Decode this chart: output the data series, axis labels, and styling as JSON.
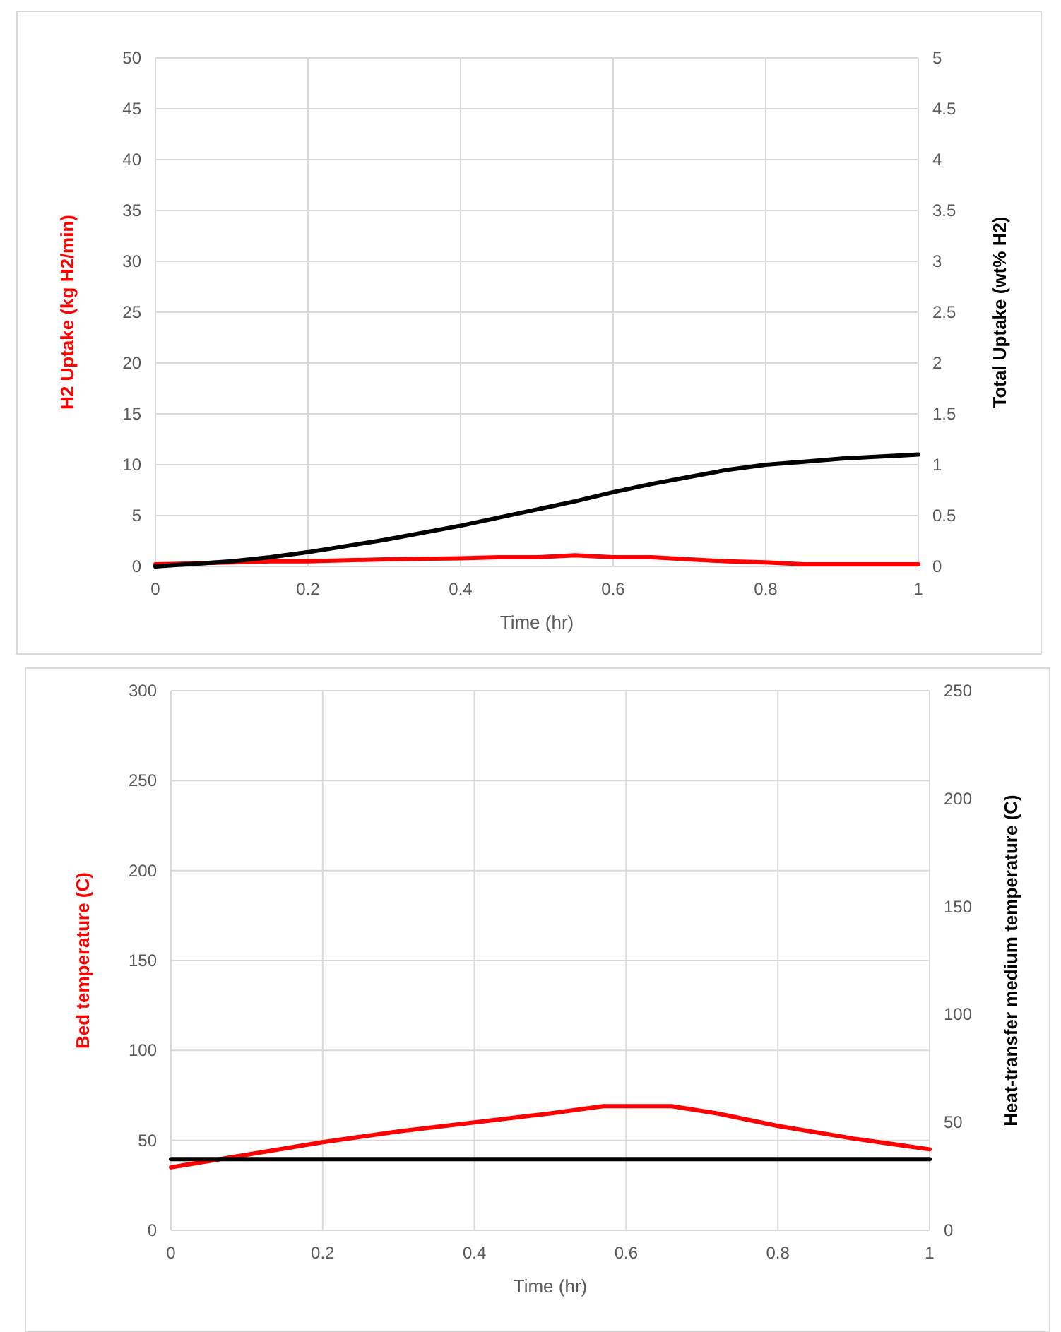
{
  "chart_data": [
    {
      "type": "line",
      "xlabel": "Time (hr)",
      "ylabel": "H2 Uptake (kg H2/min)",
      "y2label": "Total Uptake (wt% H2)",
      "x": [
        0,
        0.1,
        0.15,
        0.2,
        0.3,
        0.4,
        0.45,
        0.5,
        0.55,
        0.6,
        0.65,
        0.7,
        0.75,
        0.8,
        0.85,
        0.9,
        1
      ],
      "xlim": [
        0,
        1
      ],
      "xticks": [
        0,
        0.2,
        0.4,
        0.6,
        0.8,
        1
      ],
      "ylim": [
        0,
        50
      ],
      "yticks": [
        0,
        5,
        10,
        15,
        20,
        25,
        30,
        35,
        40,
        45,
        50
      ],
      "y2lim": [
        0,
        5
      ],
      "y2ticks": [
        0,
        0.5,
        1,
        1.5,
        2,
        2.5,
        3,
        3.5,
        4,
        4.5,
        5
      ],
      "grid": true,
      "series": [
        {
          "color": "#ff0000",
          "values": [
            0.2,
            0.4,
            0.5,
            0.5,
            0.7,
            0.8,
            0.9,
            0.9,
            1.1,
            0.9,
            0.9,
            0.7,
            0.5,
            0.4,
            0.2,
            0.2,
            0.2
          ]
        },
        {
          "color": "#000000",
          "axis": "y2",
          "values": [
            0,
            0.05,
            0.09,
            0.14,
            0.26,
            0.4,
            0.48,
            0.56,
            0.64,
            0.73,
            0.81,
            0.88,
            0.95,
            1.0,
            1.03,
            1.06,
            1.1
          ]
        }
      ]
    },
    {
      "type": "line",
      "xlabel": "Time (hr)",
      "ylabel": "Bed temperature (C)",
      "y2label": "Heat-transfer medium temperature (C)",
      "x": [
        0,
        0.1,
        0.2,
        0.3,
        0.4,
        0.5,
        0.57,
        0.66,
        0.72,
        0.8,
        0.9,
        1
      ],
      "xlim": [
        0,
        1
      ],
      "xticks": [
        0,
        0.2,
        0.4,
        0.6,
        0.8,
        1
      ],
      "ylim": [
        0,
        300
      ],
      "yticks": [
        0,
        50,
        100,
        150,
        200,
        250,
        300
      ],
      "y2lim": [
        0,
        250
      ],
      "y2ticks": [
        0,
        50,
        100,
        150,
        200,
        250
      ],
      "grid": true,
      "series": [
        {
          "color": "#ff0000",
          "values": [
            35,
            42,
            49,
            55,
            60,
            65,
            69,
            69,
            65,
            58,
            51,
            45
          ]
        },
        {
          "color": "#000000",
          "axis": "y2",
          "values": [
            33,
            33,
            33,
            33,
            33,
            33,
            33,
            33,
            33,
            33,
            33,
            33
          ]
        }
      ]
    }
  ]
}
